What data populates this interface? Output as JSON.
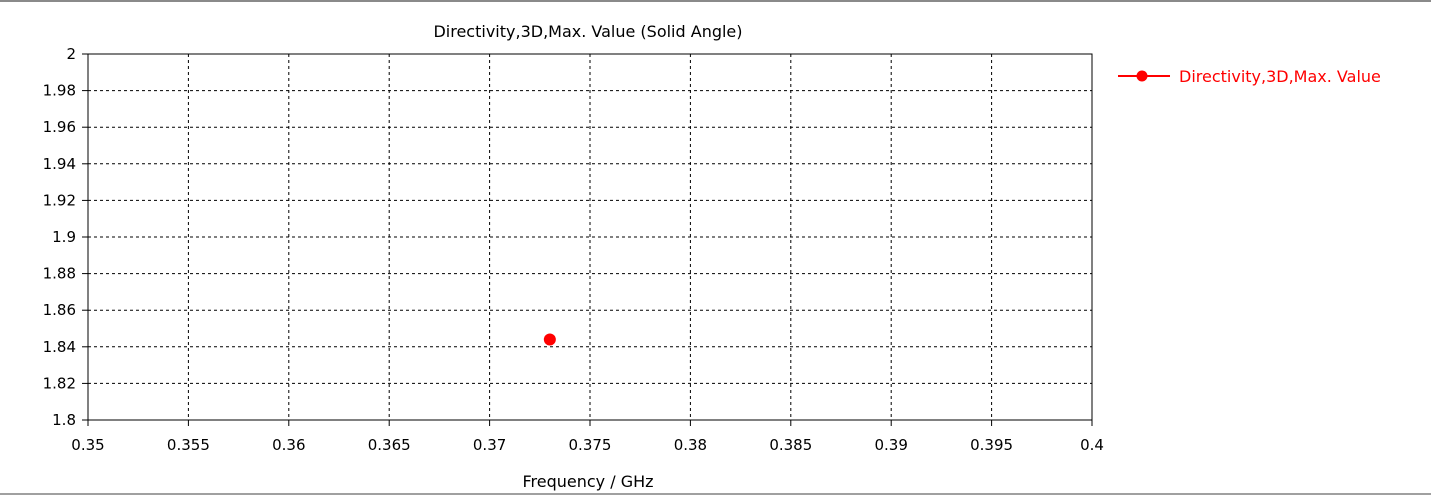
{
  "chart_data": {
    "type": "scatter",
    "title": "Directivity,3D,Max. Value (Solid Angle)",
    "xlabel": "Frequency / GHz",
    "ylabel": "",
    "xlim": [
      0.35,
      0.4
    ],
    "ylim": [
      1.8,
      2.0
    ],
    "x_ticks": [
      "0.35",
      "0.355",
      "0.36",
      "0.365",
      "0.37",
      "0.375",
      "0.38",
      "0.385",
      "0.39",
      "0.395",
      "0.4"
    ],
    "y_ticks": [
      "1.8",
      "1.82",
      "1.84",
      "1.86",
      "1.88",
      "1.9",
      "1.92",
      "1.94",
      "1.96",
      "1.98",
      "2"
    ],
    "grid": true,
    "legend_position": "right",
    "series": [
      {
        "name": "Directivity,3D,Max. Value",
        "color": "#ff0000",
        "points": [
          {
            "x": 0.373,
            "y": 1.844
          }
        ]
      }
    ]
  }
}
